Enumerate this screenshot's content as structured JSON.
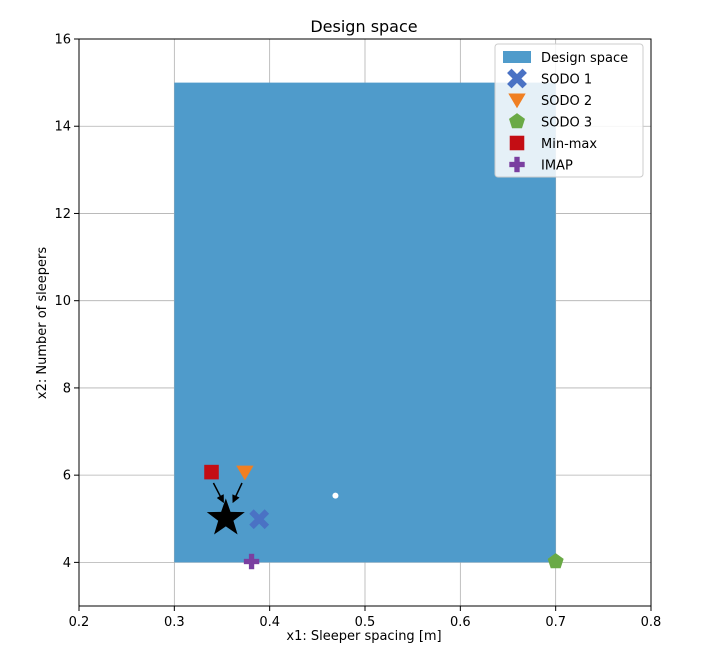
{
  "chart_data": {
    "type": "scatter",
    "title": "Design space",
    "xlabel": "x1: Sleeper spacing [m]",
    "ylabel": "x2: Number of sleepers",
    "xlim": [
      0.2,
      0.8
    ],
    "ylim": [
      3,
      16
    ],
    "xticks": [
      "0.2",
      "0.3",
      "0.4",
      "0.5",
      "0.6",
      "0.7",
      "0.8"
    ],
    "yticks": [
      "4",
      "6",
      "8",
      "10",
      "12",
      "14",
      "16"
    ],
    "grid": true,
    "legend_position": "top-right",
    "design_space": {
      "name": "Design space",
      "x": [
        0.3,
        0.7
      ],
      "y": [
        4,
        15
      ],
      "color": "#4f9bcb"
    },
    "series": [
      {
        "name": "SODO 1",
        "marker": "x-cross",
        "color": "#4a72c4",
        "x": 0.389,
        "y": 4.99
      },
      {
        "name": "SODO 2",
        "marker": "triangle-down",
        "color": "#f07f22",
        "x": 0.374,
        "y": 6.07
      },
      {
        "name": "SODO 3",
        "marker": "pentagon",
        "color": "#6aaa46",
        "x": 0.7,
        "y": 4.02
      },
      {
        "name": "Min-max",
        "marker": "square",
        "color": "#c40d14",
        "x": 0.339,
        "y": 6.07
      },
      {
        "name": "IMAP",
        "marker": "plus",
        "color": "#7a3fa0",
        "x": 0.381,
        "y": 4.02
      }
    ],
    "annotations": [
      {
        "marker": "star",
        "color": "#000000",
        "x": 0.354,
        "y": 5.01
      },
      {
        "marker": "circle",
        "color": "#ffffff",
        "x": 0.469,
        "y": 5.53
      }
    ],
    "arrows": [
      {
        "from": [
          0.341,
          5.82
        ],
        "to": [
          0.351,
          5.4
        ]
      },
      {
        "from": [
          0.371,
          5.82
        ],
        "to": [
          0.362,
          5.4
        ]
      }
    ]
  }
}
